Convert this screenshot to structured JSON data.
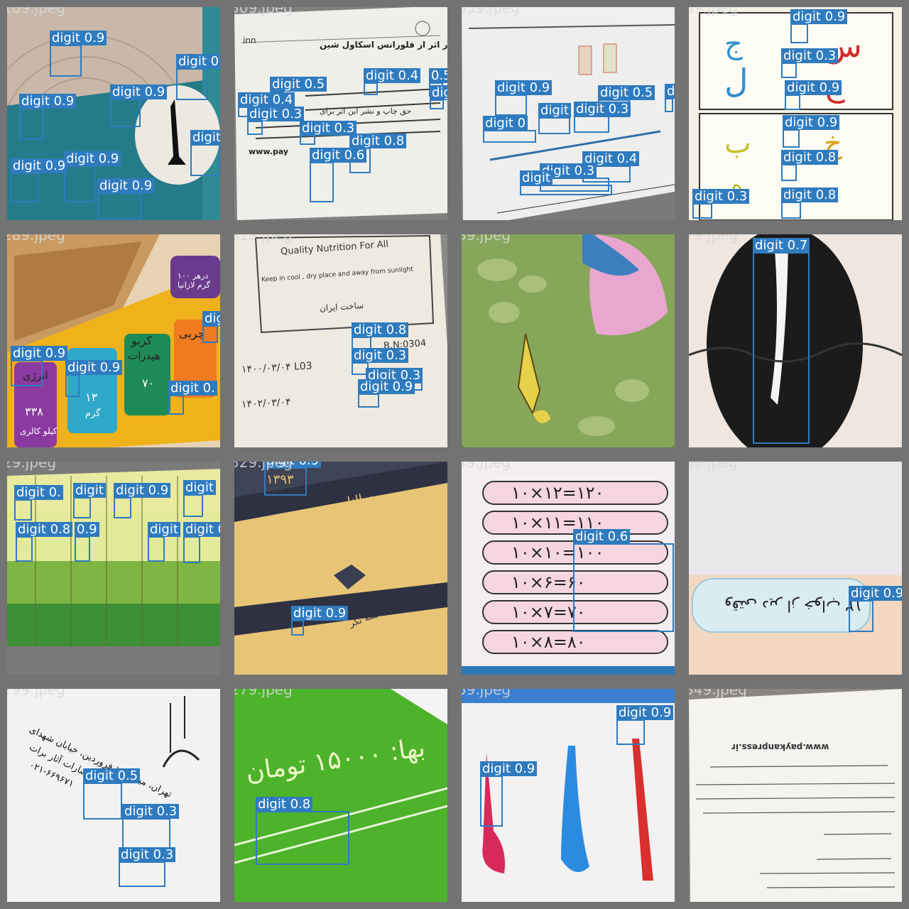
{
  "grid": {
    "tiles": [
      {
        "file": "109.jpeg",
        "detections": [
          {
            "label": "digit  0.9"
          },
          {
            "label": "digit  0"
          },
          {
            "label": "digit  0.9"
          },
          {
            "label": "digit  0.9"
          },
          {
            "label": "digit"
          },
          {
            "label": "digit  0.9"
          },
          {
            "label": "digit  0.9"
          },
          {
            "label": "digit  0.9"
          }
        ]
      },
      {
        "file": "309.jpeg",
        "detections": [
          {
            "label": "digit  0.5"
          },
          {
            "label": "digit  0.4"
          },
          {
            "label": "0.5"
          },
          {
            "label": "dig"
          },
          {
            "label": "digit  0.4"
          },
          {
            "label": "digit  0.3"
          },
          {
            "label": "digit  0.3"
          },
          {
            "label": "digit  0.8"
          },
          {
            "label": "digit  0.6"
          }
        ]
      },
      {
        "file": "339.jpeg",
        "detections": [
          {
            "label": "digit  0.9"
          },
          {
            "label": "digit  0.5"
          },
          {
            "label": "digit"
          },
          {
            "label": "digit"
          },
          {
            "label": "digit  0.3"
          },
          {
            "label": "digit  0"
          },
          {
            "label": "digit  0.4"
          },
          {
            "label": "digit  0.3"
          },
          {
            "label": "digit"
          }
        ]
      },
      {
        "file": "69.jpeg",
        "detections": [
          {
            "label": "digit  0.9"
          },
          {
            "label": "digit  0.3"
          },
          {
            "label": "digit  0.9"
          },
          {
            "label": "digit  0.9"
          },
          {
            "label": "digit  0.8"
          },
          {
            "label": "digit  0.3"
          },
          {
            "label": "digit  0.8"
          }
        ]
      },
      {
        "file": "289.jpeg",
        "detections": [
          {
            "label": "dig"
          },
          {
            "label": "digit  0.9"
          },
          {
            "label": "digit  0.9"
          },
          {
            "label": "digit  0."
          }
        ]
      },
      {
        "file": "319.jpeg",
        "detections": [
          {
            "label": "digit  0.8"
          },
          {
            "label": "digit  0.3"
          },
          {
            "label": "digit  0.3"
          },
          {
            "label": "digit  0.9"
          }
        ]
      },
      {
        "file": "39.jpeg",
        "detections": []
      },
      {
        "file": "79.jpeg",
        "detections": [
          {
            "label": "digit  0.7"
          }
        ]
      },
      {
        "file": "29.jpeg",
        "detections": [
          {
            "label": "digit  0."
          },
          {
            "label": "digit"
          },
          {
            "label": "digit  0.9"
          },
          {
            "label": "digit"
          },
          {
            "label": "digit  0.8"
          },
          {
            "label": "0.9"
          },
          {
            "label": "digit"
          },
          {
            "label": "digit  0.9"
          }
        ]
      },
      {
        "file": "329.jpeg",
        "detections": [
          {
            "label": "digit  0.9"
          },
          {
            "label": "digit  0.9"
          }
        ]
      },
      {
        "file": "49.jpeg",
        "detections": [
          {
            "label": "digit  0.6"
          }
        ]
      },
      {
        "file": "89.jpeg",
        "detections": [
          {
            "label": "digit  0.9"
          }
        ]
      },
      {
        "file": "299.jpeg",
        "detections": [
          {
            "label": "digit  0.5"
          },
          {
            "label": "digit  0.3"
          },
          {
            "label": "digit  0.3"
          }
        ]
      },
      {
        "file": "279.jpeg",
        "detections": [
          {
            "label": "digit  0.8"
          }
        ]
      },
      {
        "file": "59.jpeg",
        "detections": [
          {
            "label": "digit  0.9"
          },
          {
            "label": "digit  0.9"
          }
        ]
      },
      {
        "file": "349.jpeg",
        "detections": []
      }
    ]
  },
  "photo_text": {
    "t309": {
      "line1": "چهار اثر از فلورانس اسکاول شین",
      "line2": "حق چاپ و نشر این اثر برای",
      "line3": "www.pay",
      "corner": "inn"
    },
    "t289": {
      "n1": "کربو",
      "n2": "هیدرات",
      "n3": "چربی",
      "n4": "انرژی",
      "n5": "۳۳۸",
      "n6": "کیلو کالری",
      "n7": "۱۳",
      "n8": "گرم",
      "n9": "۷۰",
      "n10": "درهر ۱۰۰ گرم لازانیا"
    },
    "t319": {
      "l1": "Quality Nutrition For All",
      "l2": "Keep in cool , dry place and  away from sunlight",
      "l3": "ساخت ایران",
      "l4": "۱۴۰۰/۰۳/۰۴   L03",
      "l5": "۱۴۰۲/۰۳/۰۴",
      "l6": "B.N:0304"
    },
    "t329": {
      "l1": "۱۳۹۳",
      "l2": "سالنامه",
      "l3": "نشر جامعه نگر"
    },
    "t49": {
      "r1": "۱۰×۱۲=۱۲۰",
      "r2": "۱۰×۱۱=۱۱۰",
      "r3": "۱۰×۱۰=۱۰۰",
      "r4": "۱۰×۶=۶۰",
      "r5": "۱۰×۷=۷۰",
      "r6": "۱۰×۸=۸۰"
    },
    "t89": {
      "l1": "۱۳ وقتی دیر از خواب"
    },
    "t299": {
      "l1": "تهران، میدان ۱۲ فروردین، خیابان شهدای",
      "l2": "انتشارات آثار برات",
      "l3": "۰۲۱-۶۶۹۶۷۱"
    },
    "t279": {
      "l1": "بها: ۱۵۰۰۰ تومان"
    },
    "t349": {
      "l1": "www.paykanpress.ir"
    }
  }
}
